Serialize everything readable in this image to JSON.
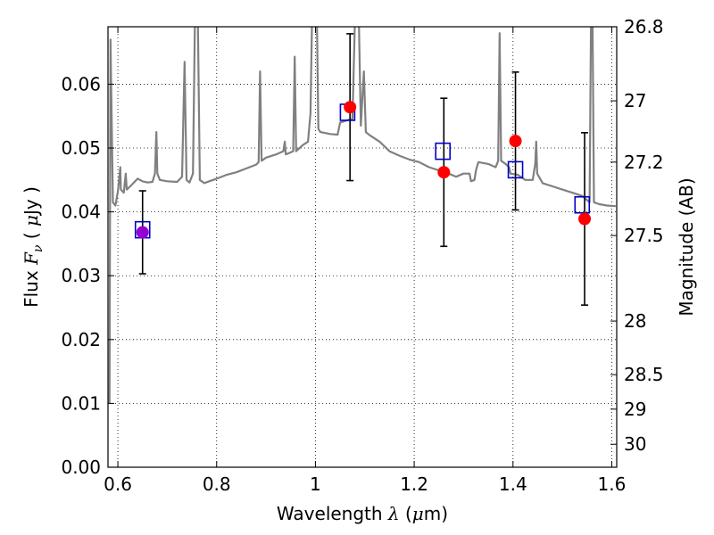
{
  "chart_data": {
    "type": "scatter",
    "title": "",
    "xlabel": "Wavelength  λ (μm)",
    "ylabel": "Flux  Fν  ( μJy )",
    "ylabel_right": "Magnitude (AB)",
    "xlim": [
      0.58,
      1.61
    ],
    "ylim": [
      0.0,
      0.069
    ],
    "x_ticks": [
      0.6,
      0.8,
      1.0,
      1.2,
      1.4,
      1.6
    ],
    "x_tick_labels": [
      "0.6",
      "0.8",
      "1",
      "1.2",
      "1.4",
      "1.6"
    ],
    "y_ticks": [
      0.0,
      0.01,
      0.02,
      0.03,
      0.04,
      0.05,
      0.06
    ],
    "y_tick_labels": [
      "0.00",
      "0.01",
      "0.02",
      "0.03",
      "0.04",
      "0.05",
      "0.06"
    ],
    "right_ticks": [
      {
        "label": "26.8",
        "flux": 0.069
      },
      {
        "label": "27",
        "flux": 0.0574
      },
      {
        "label": "27.2",
        "flux": 0.0478
      },
      {
        "label": "27.5",
        "flux": 0.0363
      },
      {
        "label": "28",
        "flux": 0.0229
      },
      {
        "label": "28.5",
        "flux": 0.0145
      },
      {
        "label": "29",
        "flux": 0.0091
      },
      {
        "label": "30",
        "flux": 0.0036
      }
    ],
    "grid": true,
    "series": [
      {
        "kind": "model_spectrum",
        "color": "#808080",
        "points": [
          [
            0.583,
            0.01
          ],
          [
            0.585,
            0.067
          ],
          [
            0.59,
            0.0415
          ],
          [
            0.595,
            0.041
          ],
          [
            0.6,
            0.0432
          ],
          [
            0.605,
            0.047
          ],
          [
            0.606,
            0.0435
          ],
          [
            0.612,
            0.043
          ],
          [
            0.616,
            0.046
          ],
          [
            0.618,
            0.0435
          ],
          [
            0.625,
            0.044
          ],
          [
            0.64,
            0.0452
          ],
          [
            0.65,
            0.0448
          ],
          [
            0.66,
            0.0446
          ],
          [
            0.67,
            0.0447
          ],
          [
            0.675,
            0.046
          ],
          [
            0.678,
            0.0525
          ],
          [
            0.68,
            0.046
          ],
          [
            0.685,
            0.045
          ],
          [
            0.7,
            0.0448
          ],
          [
            0.72,
            0.0447
          ],
          [
            0.73,
            0.0455
          ],
          [
            0.735,
            0.0635
          ],
          [
            0.739,
            0.045
          ],
          [
            0.745,
            0.0446
          ],
          [
            0.752,
            0.046
          ],
          [
            0.756,
            0.07
          ],
          [
            0.762,
            0.07
          ],
          [
            0.766,
            0.045
          ],
          [
            0.775,
            0.0445
          ],
          [
            0.785,
            0.0448
          ],
          [
            0.8,
            0.0452
          ],
          [
            0.82,
            0.0458
          ],
          [
            0.84,
            0.0462
          ],
          [
            0.86,
            0.0468
          ],
          [
            0.88,
            0.0474
          ],
          [
            0.885,
            0.0478
          ],
          [
            0.888,
            0.062
          ],
          [
            0.891,
            0.048
          ],
          [
            0.9,
            0.0485
          ],
          [
            0.92,
            0.049
          ],
          [
            0.935,
            0.0495
          ],
          [
            0.938,
            0.051
          ],
          [
            0.94,
            0.049
          ],
          [
            0.955,
            0.0495
          ],
          [
            0.958,
            0.0643
          ],
          [
            0.961,
            0.0495
          ],
          [
            0.975,
            0.0505
          ],
          [
            0.985,
            0.051
          ],
          [
            0.99,
            0.0555
          ],
          [
            0.993,
            0.07
          ],
          [
            1.003,
            0.07
          ],
          [
            1.006,
            0.053
          ],
          [
            1.01,
            0.0525
          ],
          [
            1.03,
            0.0522
          ],
          [
            1.045,
            0.0521
          ],
          [
            1.05,
            0.054
          ],
          [
            1.07,
            0.0545
          ],
          [
            1.075,
            0.0545
          ],
          [
            1.08,
            0.07
          ],
          [
            1.088,
            0.07
          ],
          [
            1.092,
            0.0535
          ],
          [
            1.098,
            0.062
          ],
          [
            1.102,
            0.0525
          ],
          [
            1.11,
            0.052
          ],
          [
            1.13,
            0.051
          ],
          [
            1.15,
            0.0495
          ],
          [
            1.17,
            0.0488
          ],
          [
            1.19,
            0.0482
          ],
          [
            1.21,
            0.0478
          ],
          [
            1.23,
            0.047
          ],
          [
            1.25,
            0.0465
          ],
          [
            1.27,
            0.046
          ],
          [
            1.285,
            0.0455
          ],
          [
            1.3,
            0.046
          ],
          [
            1.312,
            0.046
          ],
          [
            1.315,
            0.0448
          ],
          [
            1.322,
            0.045
          ],
          [
            1.325,
            0.0465
          ],
          [
            1.33,
            0.0478
          ],
          [
            1.35,
            0.0475
          ],
          [
            1.365,
            0.047
          ],
          [
            1.37,
            0.048
          ],
          [
            1.373,
            0.068
          ],
          [
            1.376,
            0.048
          ],
          [
            1.385,
            0.0475
          ],
          [
            1.392,
            0.047
          ],
          [
            1.395,
            0.046
          ],
          [
            1.41,
            0.0458
          ],
          [
            1.425,
            0.045
          ],
          [
            1.44,
            0.045
          ],
          [
            1.445,
            0.0475
          ],
          [
            1.447,
            0.051
          ],
          [
            1.449,
            0.046
          ],
          [
            1.46,
            0.0445
          ],
          [
            1.48,
            0.044
          ],
          [
            1.5,
            0.0435
          ],
          [
            1.52,
            0.043
          ],
          [
            1.54,
            0.0425
          ],
          [
            1.555,
            0.0415
          ],
          [
            1.558,
            0.07
          ],
          [
            1.561,
            0.07
          ],
          [
            1.564,
            0.0415
          ],
          [
            1.575,
            0.0412
          ],
          [
            1.59,
            0.041
          ],
          [
            1.608,
            0.0409
          ]
        ]
      },
      {
        "kind": "observed",
        "marker": "circle",
        "color": "#ff0000",
        "points": [
          {
            "x": 0.65,
            "y": 0.0368,
            "err": 0.0065,
            "color": "#9400d3"
          },
          {
            "x": 1.07,
            "y": 0.0564,
            "err": 0.0115
          },
          {
            "x": 1.26,
            "y": 0.0462,
            "err": 0.0116
          },
          {
            "x": 1.405,
            "y": 0.0511,
            "err": 0.0108
          },
          {
            "x": 1.545,
            "y": 0.0389,
            "err": 0.0135
          }
        ]
      },
      {
        "kind": "model_photometry",
        "marker": "open-square",
        "color": "#0000c8",
        "points": [
          {
            "x": 0.65,
            "y": 0.0372
          },
          {
            "x": 1.065,
            "y": 0.0556
          },
          {
            "x": 1.258,
            "y": 0.0495
          },
          {
            "x": 1.405,
            "y": 0.0466
          },
          {
            "x": 1.54,
            "y": 0.0411
          }
        ]
      }
    ]
  }
}
